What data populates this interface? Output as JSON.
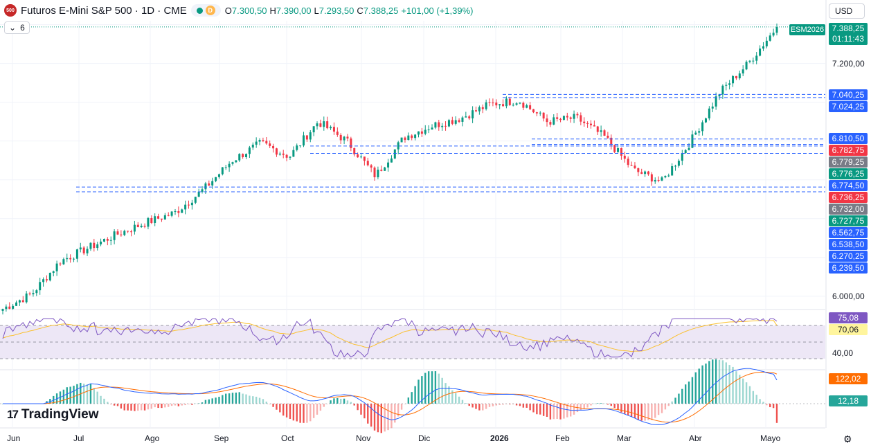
{
  "header": {
    "logo_text": "500",
    "title": "Futuros E-Mini S&P 500 · 1D · CME",
    "status_letter": "D",
    "ohlc": [
      {
        "k": "O",
        "v": "7.300,50"
      },
      {
        "k": "H",
        "v": "7.390,00"
      },
      {
        "k": "L",
        "v": "7.293,50"
      },
      {
        "k": "C",
        "v": "7.388,25"
      },
      {
        "k": "",
        "v": "+101,00 (+1,39%)"
      }
    ],
    "collapse_count": "6"
  },
  "currency": "USD",
  "last_price": {
    "symbol": "ESM2026",
    "price": "7.388,25",
    "countdown": "01:11:43",
    "value": 7388.25
  },
  "price_axis": {
    "labels": [
      {
        "text": "7.200,00",
        "value": 7200
      },
      {
        "text": "6.000,00",
        "value": 6000
      }
    ],
    "tags": [
      {
        "text": "7.040,25",
        "value": 7040.25,
        "color": "#2962ff"
      },
      {
        "text": "7.024,25",
        "value": 7024.25,
        "color": "#2962ff"
      },
      {
        "text": "6.810,50",
        "value": 6810.5,
        "color": "#2962ff"
      },
      {
        "text": "6.782,75",
        "value": 6782.75,
        "color": "#f23645"
      },
      {
        "text": "6.779,25",
        "value": 6779.25,
        "color": "#787b86"
      },
      {
        "text": "6.776,25",
        "value": 6776.25,
        "color": "#089981"
      },
      {
        "text": "6.774,50",
        "value": 6774.5,
        "color": "#2962ff"
      },
      {
        "text": "6.736,25",
        "value": 6736.25,
        "color": "#f23645"
      },
      {
        "text": "6.732,00",
        "value": 6732,
        "color": "#787b86"
      },
      {
        "text": "6.727,75",
        "value": 6727.75,
        "color": "#089981"
      },
      {
        "text": "6.562,75",
        "value": 6562.75,
        "color": "#2962ff"
      },
      {
        "text": "6.538,50",
        "value": 6538.5,
        "color": "#2962ff"
      },
      {
        "text": "6.270,25",
        "value": 6270.25,
        "color": "#2962ff"
      },
      {
        "text": "6.239,50",
        "value": 6239.5,
        "color": "#2962ff"
      }
    ]
  },
  "rsi": {
    "value_label": "75,08",
    "value": 75.08,
    "ma_label": "70,06",
    "ma": 70.06,
    "level_label": "40,00",
    "upper": 70,
    "lower": 30,
    "colors": {
      "line": "#7e57c2",
      "ma": "#fbc02d",
      "band": "#ede7f6"
    }
  },
  "macd": {
    "macd_label": "122,02",
    "macd": 122.02,
    "hist_label": "12,18",
    "hist": 12.18,
    "colors": {
      "macd": "#2962ff",
      "signal": "#ff6d00",
      "pos": "#26a69a",
      "neg": "#ef5350"
    }
  },
  "time_axis": [
    {
      "text": "Jun",
      "bold": false
    },
    {
      "text": "Jul",
      "bold": false
    },
    {
      "text": "Ago",
      "bold": false
    },
    {
      "text": "Sep",
      "bold": false
    },
    {
      "text": "Oct",
      "bold": false
    },
    {
      "text": "Nov",
      "bold": false
    },
    {
      "text": "Dic",
      "bold": false
    },
    {
      "text": "2026",
      "bold": true
    },
    {
      "text": "Feb",
      "bold": false
    },
    {
      "text": "Mar",
      "bold": false
    },
    {
      "text": "Abr",
      "bold": false
    },
    {
      "text": "Mayo",
      "bold": false
    }
  ],
  "brand": "TradingView",
  "chart_data": {
    "type": "candlestick",
    "symbol": "ESM2026",
    "interval": "1D",
    "anchors": [
      [
        "Jun",
        5935
      ],
      [
        "Jun+",
        6010
      ],
      [
        "Jul",
        6180
      ],
      [
        "Jul+",
        6250
      ],
      [
        "Ago",
        6320
      ],
      [
        "Ago+",
        6380
      ],
      [
        "Sep",
        6430
      ],
      [
        "Sep+",
        6550
      ],
      [
        "Oct",
        6700
      ],
      [
        "Oct+",
        6790
      ],
      [
        "Oct++",
        6720
      ],
      [
        "Nov",
        6900
      ],
      [
        "Nov+",
        6800
      ],
      [
        "Nov++",
        6620
      ],
      [
        "Dic",
        6820
      ],
      [
        "Dic+",
        6880
      ],
      [
        "Ene",
        6920
      ],
      [
        "2026",
        6990
      ],
      [
        "Feb",
        7010
      ],
      [
        "Feb+",
        6900
      ],
      [
        "Mar",
        6920
      ],
      [
        "Mar+",
        6820
      ],
      [
        "Mar++",
        6650
      ],
      [
        "Abr",
        6590
      ],
      [
        "Abr+",
        6800
      ],
      [
        "Abr++",
        7050
      ],
      [
        "Mayo",
        7200
      ],
      [
        "Mayo+",
        7388
      ]
    ],
    "support_resistance": [
      {
        "from": 7040.25,
        "to": 7024.25
      },
      {
        "from": 6810.5,
        "to": 6782.75
      },
      {
        "from": 6774.5,
        "to": 6736.25
      },
      {
        "from": 6562.75,
        "to": 6538.5
      }
    ]
  }
}
